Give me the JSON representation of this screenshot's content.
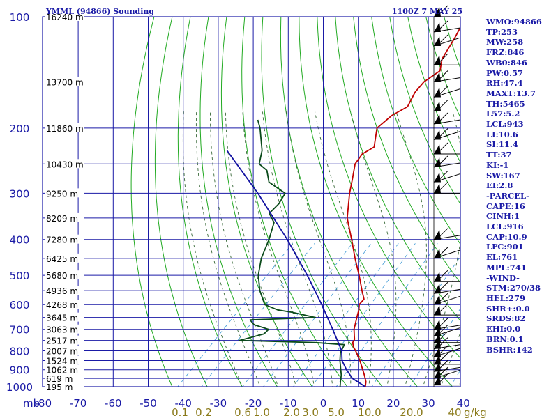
{
  "chart_data": {
    "type": "line",
    "title": "YMML (94866) Sounding",
    "subtitle": "1100Z  7 MAY 25",
    "y_axis": {
      "unit_label": "mb",
      "log_scale": true,
      "ylim": [
        1000,
        100
      ],
      "pressure_ticks": [
        100,
        200,
        300,
        400,
        500,
        600,
        700,
        800,
        900,
        1000
      ]
    },
    "x_axis": {
      "temperature_ticks": [
        -80,
        -70,
        -60,
        -50,
        -40,
        -30,
        -20,
        -10,
        0,
        10,
        20,
        30,
        40
      ],
      "tick_labels": [
        "-80",
        "-70",
        "-60",
        "-50",
        "-40",
        "-30",
        "-20",
        "-10",
        "0",
        "10",
        "20",
        "30",
        "40"
      ],
      "skew": "45 degrees",
      "xlim": [
        -80,
        40
      ]
    },
    "height_labels": [
      {
        "p": 100,
        "label": "16240 m"
      },
      {
        "p": 150,
        "label": "13700 m"
      },
      {
        "p": 200,
        "label": "11860 m"
      },
      {
        "p": 250,
        "label": "10430 m"
      },
      {
        "p": 300,
        "label": "9250 m"
      },
      {
        "p": 350,
        "label": "8209 m"
      },
      {
        "p": 400,
        "label": "7280 m"
      },
      {
        "p": 450,
        "label": "6425 m"
      },
      {
        "p": 500,
        "label": "5680 m"
      },
      {
        "p": 550,
        "label": "4936 m"
      },
      {
        "p": 600,
        "label": "4268 m"
      },
      {
        "p": 650,
        "label": "3645 m"
      },
      {
        "p": 700,
        "label": "3063 m"
      },
      {
        "p": 750,
        "label": "2517 m"
      },
      {
        "p": 800,
        "label": "2007 m"
      },
      {
        "p": 850,
        "label": "1524 m"
      },
      {
        "p": 900,
        "label": "1062 m"
      },
      {
        "p": 950,
        "label": "619 m"
      },
      {
        "p": 1000,
        "label": "195 m"
      }
    ],
    "mixing_ratio_labels": [
      {
        "w": 0.1,
        "label": "0.1"
      },
      {
        "w": 0.2,
        "label": "0.2"
      },
      {
        "w": 0.6,
        "label": "0.6"
      },
      {
        "w": 1.0,
        "label": "1.0"
      },
      {
        "w": 2.0,
        "label": "2.0"
      },
      {
        "w": 3.0,
        "label": "3.0"
      },
      {
        "w": 5.0,
        "label": "5.0"
      },
      {
        "w": 10.0,
        "label": "10.0"
      },
      {
        "w": 20.0,
        "label": "20.0"
      },
      {
        "w": 40.0,
        "label": "40"
      }
    ],
    "mixing_ratio_unit": "g/kg",
    "series": [
      {
        "color": "#c00000",
        "points": [
          [
            1000,
            12.0
          ],
          [
            970,
            10.8
          ],
          [
            930,
            8.4
          ],
          [
            850,
            3.0
          ],
          [
            800,
            -1.0
          ],
          [
            780,
            -2.8
          ],
          [
            760,
            -4.2
          ],
          [
            745,
            -4.6
          ],
          [
            730,
            -5.6
          ],
          [
            700,
            -7.6
          ],
          [
            650,
            -10.2
          ],
          [
            620,
            -11.8
          ],
          [
            600,
            -13.2
          ],
          [
            580,
            -13.4
          ],
          [
            550,
            -16.4
          ],
          [
            500,
            -21.6
          ],
          [
            450,
            -27.6
          ],
          [
            400,
            -34.0
          ],
          [
            350,
            -41.4
          ],
          [
            300,
            -47.8
          ],
          [
            275,
            -51.0
          ],
          [
            250,
            -54.6
          ],
          [
            235,
            -55.4
          ],
          [
            225,
            -54.0
          ],
          [
            200,
            -58.6
          ],
          [
            185,
            -58.0
          ],
          [
            175,
            -56.0
          ],
          [
            160,
            -58.0
          ],
          [
            150,
            -58.4
          ],
          [
            140,
            -57.0
          ],
          [
            130,
            -59.8
          ],
          [
            115,
            -62.0
          ],
          [
            100,
            -65.0
          ]
        ]
      },
      {
        "color": "#0a4a1a",
        "points": [
          [
            1000,
            4.8
          ],
          [
            970,
            3.5
          ],
          [
            930,
            1.8
          ],
          [
            850,
            -2.7
          ],
          [
            810,
            -4.8
          ],
          [
            770,
            -6.0
          ],
          [
            760,
            -15.0
          ],
          [
            750,
            -37.2
          ],
          [
            720,
            -32.0
          ],
          [
            700,
            -32.0
          ],
          [
            680,
            -37.5
          ],
          [
            660,
            -40.0
          ],
          [
            650,
            -22.0
          ],
          [
            630,
            -30.0
          ],
          [
            620,
            -35.0
          ],
          [
            600,
            -40.2
          ],
          [
            550,
            -45.6
          ],
          [
            500,
            -50.4
          ],
          [
            450,
            -54.4
          ],
          [
            400,
            -57.6
          ],
          [
            360,
            -61.0
          ],
          [
            340,
            -65.0
          ],
          [
            320,
            -65.0
          ],
          [
            300,
            -66.2
          ],
          [
            280,
            -74.0
          ],
          [
            260,
            -78.0
          ],
          [
            250,
            -82.0
          ],
          [
            230,
            -85.0
          ],
          [
            200,
            -92.0
          ],
          [
            190,
            -95.0
          ]
        ]
      },
      {
        "color": "#1010a0",
        "points": [
          [
            1000,
            12.0
          ],
          [
            950,
            6.0
          ],
          [
            900,
            1.8
          ],
          [
            850,
            -2.1
          ],
          [
            800,
            -5.0
          ],
          [
            700,
            -13.7
          ],
          [
            600,
            -23.9
          ],
          [
            500,
            -36.4
          ],
          [
            400,
            -52.4
          ],
          [
            300,
            -74.0
          ],
          [
            230,
            -95.0
          ]
        ]
      }
    ],
    "wind_barbs_present": true,
    "indices": [
      "WMO:94866",
      "TP:253",
      "MW:258",
      "FRZ:846",
      "WB0:846",
      "PW:0.57",
      "RH:47.4",
      "MAXT:13.7",
      "TH:5465",
      "L57:5.2",
      "LCL:943",
      "LI:10.6",
      "SI:11.4",
      "TT:37",
      "KI:-1",
      "SW:167",
      "EI:2.8",
      "-PARCEL-",
      "CAPE:16",
      "CINH:1",
      "LCL:916",
      "CAP:10.9",
      "LFC:901",
      "EL:761",
      "MPL:741",
      "-WIND-",
      "STM:270/38",
      "HEL:279",
      "SHR+:0.0",
      "SRDS:82",
      "EHI:0.0",
      "BRN:0.1",
      "BSHR:142"
    ]
  },
  "colors": {
    "grid": "#1a1aa6",
    "dry_adiabat": "#22aa22",
    "moist_adiabat": "#3a6a3a",
    "mixing_ratio": "#4aa0d8",
    "temperature": "#c00000",
    "dewpoint": "#0a4a1a",
    "parcel": "#1010a0"
  }
}
